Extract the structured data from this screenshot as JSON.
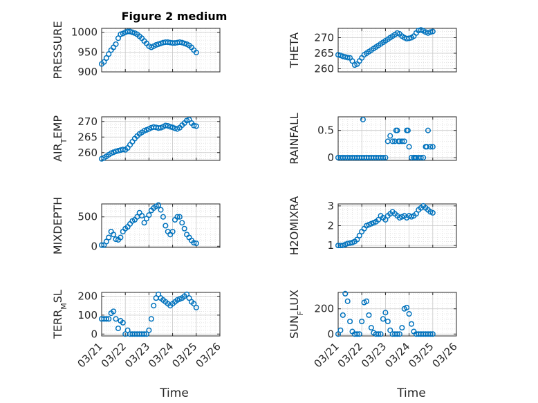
{
  "figure": {
    "title": "Figure 2 medium",
    "xlabel": "Time",
    "xticks": [
      "03/21",
      "03/22",
      "03/23",
      "03/24",
      "03/25",
      "03/26"
    ],
    "marker_color": "#0072BD"
  },
  "chart_data": [
    {
      "type": "scatter",
      "ylabel": "PRESSURE",
      "ylim": [
        900,
        1010
      ],
      "yticks": [
        900,
        950,
        1000
      ],
      "x": [
        0,
        0.1,
        0.2,
        0.3,
        0.4,
        0.5,
        0.6,
        0.7,
        0.8,
        0.9,
        1.0,
        1.1,
        1.2,
        1.3,
        1.4,
        1.5,
        1.6,
        1.7,
        1.8,
        1.9,
        2.0,
        2.1,
        2.2,
        2.3,
        2.4,
        2.5,
        2.6,
        2.7,
        2.8,
        2.9,
        3.0,
        3.1,
        3.2,
        3.3,
        3.4,
        3.5,
        3.6,
        3.7,
        3.8,
        3.9,
        4.0
      ],
      "y": [
        920,
        925,
        935,
        945,
        955,
        962,
        970,
        985,
        995,
        997,
        1000,
        1002,
        1002,
        1000,
        998,
        995,
        990,
        985,
        978,
        972,
        965,
        962,
        965,
        968,
        970,
        972,
        974,
        975,
        975,
        974,
        973,
        973,
        974,
        975,
        974,
        972,
        970,
        967,
        962,
        955,
        949
      ]
    },
    {
      "type": "scatter",
      "ylabel": "THETA",
      "ylim": [
        259,
        273
      ],
      "yticks": [
        260,
        265,
        270
      ],
      "x": [
        0,
        0.1,
        0.2,
        0.3,
        0.4,
        0.5,
        0.6,
        0.7,
        0.8,
        0.9,
        1.0,
        1.1,
        1.2,
        1.3,
        1.4,
        1.5,
        1.6,
        1.7,
        1.8,
        1.9,
        2.0,
        2.1,
        2.2,
        2.3,
        2.4,
        2.5,
        2.6,
        2.7,
        2.8,
        2.9,
        3.0,
        3.1,
        3.2,
        3.3,
        3.4,
        3.5,
        3.6,
        3.7,
        3.8,
        3.9,
        4.0
      ],
      "y": [
        264.5,
        264.3,
        264,
        263.8,
        263.6,
        263.5,
        262.5,
        261.2,
        261.5,
        262.5,
        263.5,
        264.5,
        265,
        265.5,
        266,
        266.5,
        267,
        267.5,
        268,
        268.5,
        269,
        269.5,
        270,
        270.5,
        271,
        271.5,
        271.2,
        270.5,
        270,
        269.7,
        269.8,
        270,
        270.5,
        271.5,
        272.3,
        272.5,
        272.2,
        271.8,
        271.5,
        271.8,
        272
      ]
    },
    {
      "type": "scatter",
      "ylabel": "AIR_TEMP",
      "ylim": [
        257.5,
        271.5
      ],
      "yticks": [
        260,
        265,
        270
      ],
      "x": [
        0,
        0.1,
        0.2,
        0.3,
        0.4,
        0.5,
        0.6,
        0.7,
        0.8,
        0.9,
        1.0,
        1.1,
        1.2,
        1.3,
        1.4,
        1.5,
        1.6,
        1.7,
        1.8,
        1.9,
        2.0,
        2.1,
        2.2,
        2.3,
        2.4,
        2.5,
        2.6,
        2.7,
        2.8,
        2.9,
        3.0,
        3.1,
        3.2,
        3.3,
        3.4,
        3.5,
        3.6,
        3.7,
        3.8,
        3.9,
        4.0
      ],
      "y": [
        258,
        258.3,
        258.8,
        259.3,
        259.8,
        260.1,
        260.4,
        260.6,
        260.8,
        261,
        260.9,
        261.5,
        262.5,
        263.5,
        264.5,
        265.3,
        266,
        266.5,
        267,
        267.3,
        267.6,
        268,
        268.2,
        268.1,
        267.9,
        268,
        268.3,
        268.7,
        268.6,
        268.3,
        268.1,
        267.8,
        267.6,
        268,
        268.8,
        269.5,
        270.3,
        270.6,
        269.5,
        268.7,
        268.5
      ]
    },
    {
      "type": "scatter",
      "ylabel": "RAINFALL",
      "ylim": [
        -0.05,
        0.75
      ],
      "yticks": [
        0,
        0.5
      ],
      "x": [
        0,
        0.1,
        0.2,
        0.3,
        0.4,
        0.5,
        0.6,
        0.7,
        0.8,
        0.9,
        1.0,
        1.05,
        1.1,
        1.2,
        1.3,
        1.4,
        1.5,
        1.6,
        1.7,
        1.8,
        1.9,
        2.0,
        2.1,
        2.2,
        2.3,
        2.4,
        2.45,
        2.5,
        2.55,
        2.6,
        2.7,
        2.8,
        2.9,
        2.95,
        3.0,
        3.1,
        3.2,
        3.25,
        3.3,
        3.4,
        3.5,
        3.6,
        3.7,
        3.75,
        3.8,
        3.9,
        4.0
      ],
      "y": [
        0,
        0,
        0,
        0,
        0,
        0,
        0,
        0,
        0,
        0,
        0,
        0.7,
        0,
        0,
        0,
        0,
        0,
        0,
        0,
        0,
        0,
        0,
        0.3,
        0.4,
        0.3,
        0.3,
        0.5,
        0.5,
        0.3,
        0.3,
        0.3,
        0.3,
        0.5,
        0.5,
        0.2,
        0,
        0,
        0,
        0,
        0,
        0,
        0,
        0.2,
        0.2,
        0.5,
        0.2,
        0.2
      ]
    },
    {
      "type": "scatter",
      "ylabel": "MIXDEPTH",
      "ylim": [
        -20,
        720
      ],
      "yticks": [
        0,
        500
      ],
      "x": [
        0,
        0.1,
        0.2,
        0.3,
        0.4,
        0.5,
        0.6,
        0.7,
        0.8,
        0.9,
        1.0,
        1.1,
        1.2,
        1.3,
        1.4,
        1.5,
        1.6,
        1.7,
        1.8,
        1.9,
        2.0,
        2.1,
        2.2,
        2.3,
        2.4,
        2.5,
        2.6,
        2.7,
        2.8,
        2.9,
        3.0,
        3.1,
        3.2,
        3.3,
        3.4,
        3.5,
        3.6,
        3.7,
        3.8,
        3.9,
        4.0
      ],
      "y": [
        20,
        20,
        80,
        150,
        250,
        200,
        120,
        110,
        150,
        250,
        300,
        330,
        380,
        430,
        450,
        500,
        570,
        520,
        400,
        470,
        530,
        610,
        650,
        680,
        700,
        620,
        500,
        350,
        250,
        200,
        250,
        450,
        500,
        500,
        400,
        300,
        200,
        150,
        100,
        60,
        50
      ]
    },
    {
      "type": "scatter",
      "ylabel": "H2OMIXRA",
      "ylim": [
        0.9,
        3.1
      ],
      "yticks": [
        1,
        2,
        3
      ],
      "x": [
        0,
        0.1,
        0.2,
        0.3,
        0.4,
        0.5,
        0.6,
        0.7,
        0.8,
        0.9,
        1.0,
        1.1,
        1.2,
        1.3,
        1.4,
        1.5,
        1.6,
        1.7,
        1.8,
        1.9,
        2.0,
        2.1,
        2.2,
        2.3,
        2.4,
        2.5,
        2.6,
        2.7,
        2.8,
        2.9,
        3.0,
        3.1,
        3.2,
        3.3,
        3.4,
        3.5,
        3.6,
        3.7,
        3.8,
        3.9,
        4.0
      ],
      "y": [
        1,
        1,
        1,
        1.05,
        1.1,
        1.12,
        1.15,
        1.2,
        1.3,
        1.5,
        1.7,
        1.85,
        2,
        2.05,
        2.1,
        2.15,
        2.2,
        2.3,
        2.5,
        2.4,
        2.3,
        2.5,
        2.6,
        2.7,
        2.6,
        2.5,
        2.4,
        2.45,
        2.5,
        2.4,
        2.5,
        2.45,
        2.5,
        2.6,
        2.8,
        2.9,
        3,
        2.9,
        2.8,
        2.7,
        2.65
      ]
    },
    {
      "type": "scatter",
      "ylabel": "TERR_MSL",
      "ylim": [
        -10,
        220
      ],
      "yticks": [
        0,
        100,
        200
      ],
      "x": [
        0,
        0.1,
        0.2,
        0.3,
        0.4,
        0.5,
        0.6,
        0.7,
        0.8,
        0.9,
        1.0,
        1.1,
        1.2,
        1.3,
        1.4,
        1.5,
        1.6,
        1.7,
        1.8,
        1.9,
        2.0,
        2.1,
        2.2,
        2.3,
        2.4,
        2.5,
        2.6,
        2.7,
        2.8,
        2.9,
        3.0,
        3.1,
        3.2,
        3.3,
        3.4,
        3.5,
        3.6,
        3.7,
        3.8,
        3.9,
        4.0
      ],
      "y": [
        80,
        80,
        80,
        80,
        110,
        120,
        80,
        30,
        70,
        60,
        0,
        20,
        0,
        0,
        0,
        0,
        0,
        0,
        0,
        0,
        20,
        80,
        150,
        190,
        210,
        190,
        180,
        170,
        160,
        150,
        160,
        170,
        180,
        185,
        190,
        200,
        210,
        190,
        170,
        160,
        140
      ]
    },
    {
      "type": "scatter",
      "ylabel": "SUN_FLUX",
      "ylim": [
        -15,
        330
      ],
      "yticks": [
        0,
        200
      ],
      "x": [
        0,
        0.1,
        0.2,
        0.3,
        0.4,
        0.5,
        0.6,
        0.7,
        0.8,
        0.9,
        1.0,
        1.1,
        1.2,
        1.3,
        1.4,
        1.5,
        1.6,
        1.7,
        1.8,
        1.9,
        2.0,
        2.1,
        2.2,
        2.3,
        2.4,
        2.5,
        2.6,
        2.7,
        2.8,
        2.9,
        3.0,
        3.1,
        3.2,
        3.3,
        3.4,
        3.5,
        3.6,
        3.7,
        3.8,
        3.9,
        4.0
      ],
      "y": [
        0,
        30,
        150,
        320,
        260,
        100,
        20,
        0,
        0,
        0,
        100,
        250,
        260,
        150,
        50,
        10,
        0,
        0,
        0,
        120,
        170,
        100,
        30,
        0,
        0,
        0,
        0,
        50,
        200,
        210,
        160,
        80,
        20,
        0,
        0,
        0,
        0,
        0,
        0,
        0,
        0
      ]
    }
  ]
}
